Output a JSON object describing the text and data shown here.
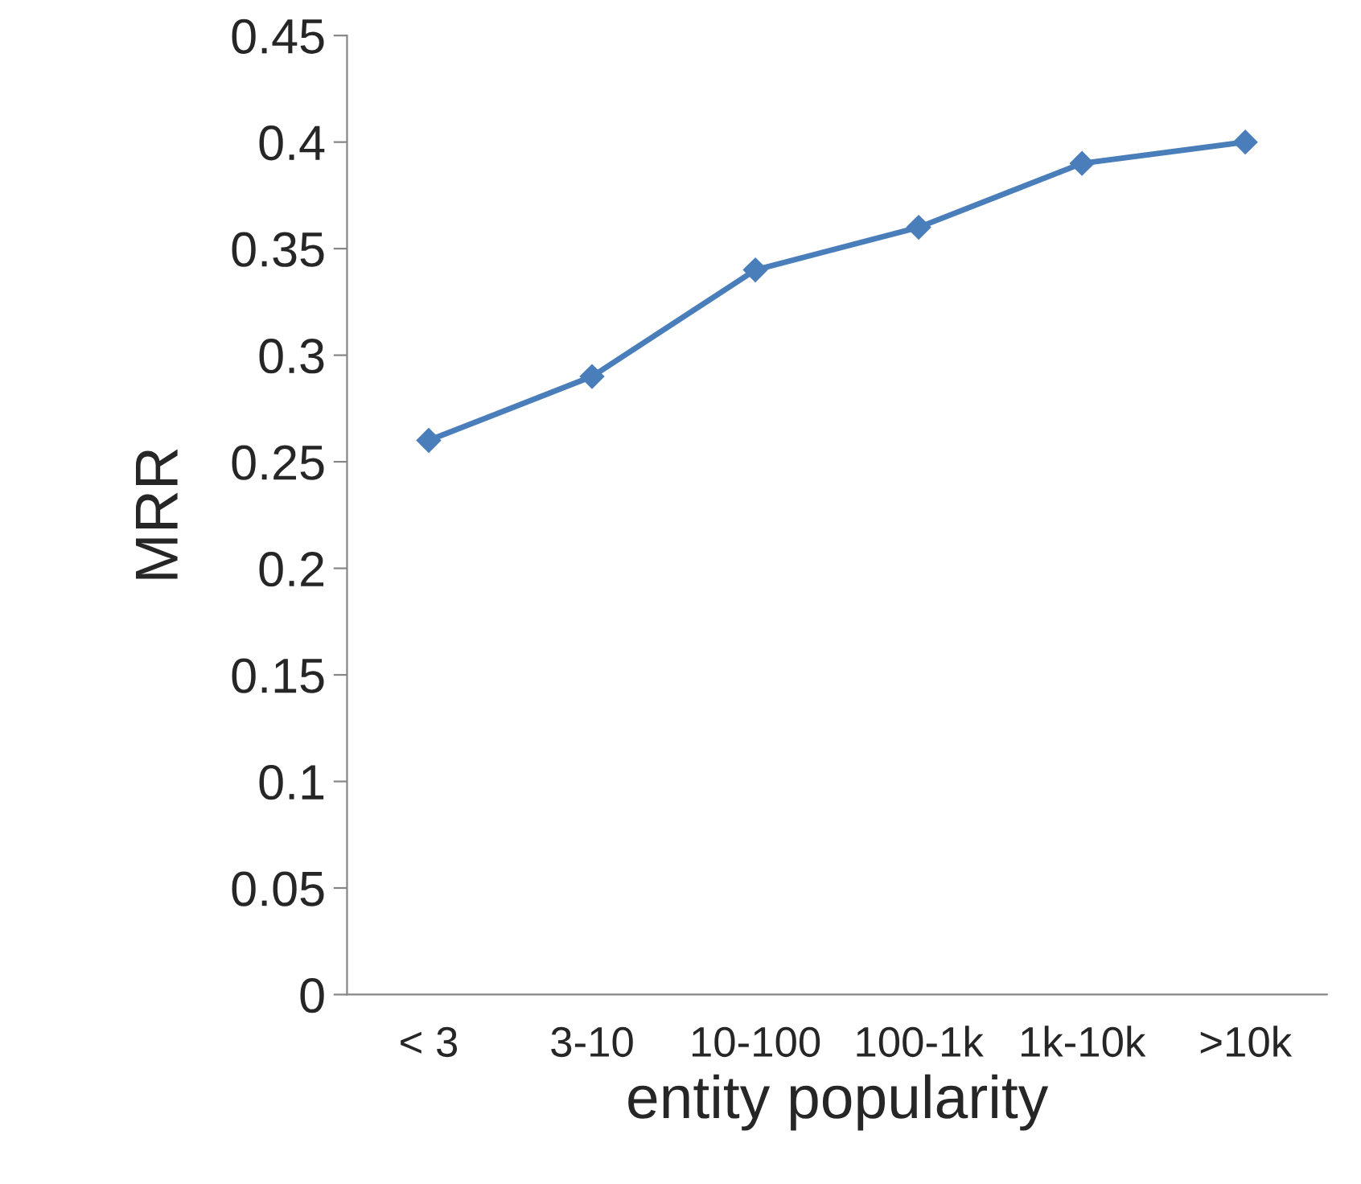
{
  "chart_data": {
    "type": "line",
    "xlabel": "entity popularity",
    "ylabel": "MRR",
    "categories": [
      "< 3",
      "3-10",
      "10-100",
      "100-1k",
      "1k-10k",
      ">10k"
    ],
    "series": [
      {
        "color": "#4a7ebb",
        "values": [
          0.26,
          0.29,
          0.34,
          0.36,
          0.39,
          0.4
        ]
      }
    ],
    "ylim": [
      0,
      0.45
    ],
    "yticks": [
      0,
      0.05,
      0.1,
      0.15,
      0.2,
      0.25,
      0.3,
      0.35,
      0.4,
      0.45
    ],
    "grid": false,
    "legend": false,
    "marker": "diamond",
    "line_style": "solid"
  }
}
